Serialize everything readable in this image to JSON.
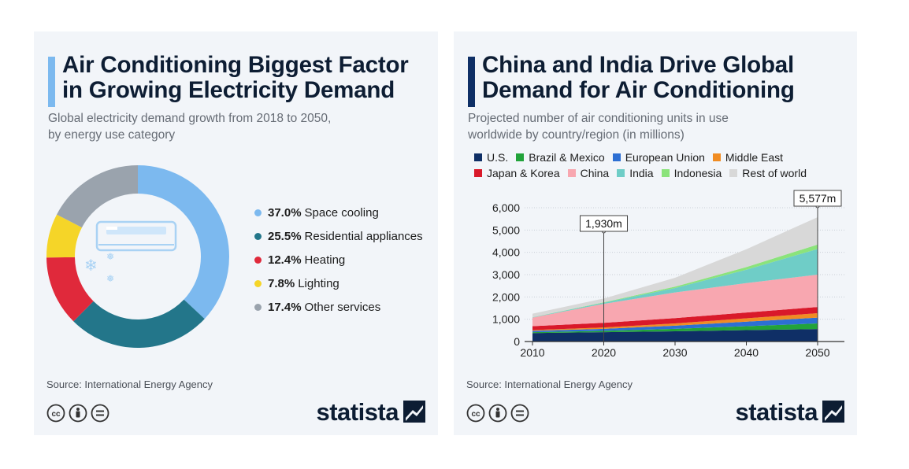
{
  "left": {
    "title_line1": "Air Conditioning Biggest Factor",
    "title_line2": "in Growing Electricity Demand",
    "subtitle_line1": "Global electricity demand growth from 2018 to 2050,",
    "subtitle_line2": "by energy use category",
    "source": "Source: International Energy Agency",
    "brand": "statista",
    "icons": [
      "cc-icon",
      "by-icon",
      "nd-icon",
      "statista-logo-icon",
      "air-conditioner-icon",
      "snowflake-icon"
    ]
  },
  "right": {
    "title_line1": "China and India Drive Global",
    "title_line2": "Demand for Air Conditioning",
    "subtitle_line1": "Projected number of air conditioning units in use",
    "subtitle_line2": "worldwide by country/region (in millions)",
    "source": "Source: International Energy Agency",
    "brand": "statista"
  },
  "chart_data": [
    {
      "type": "pie",
      "title": "Air Conditioning Biggest Factor in Growing Electricity Demand",
      "subtitle": "Global electricity demand growth from 2018 to 2050, by energy use category",
      "slices": [
        {
          "label": "Space cooling",
          "value": 37.0,
          "display": "37.0%",
          "color": "#7cb9ef"
        },
        {
          "label": "Residential appliances",
          "value": 25.5,
          "display": "25.5%",
          "color": "#23768a"
        },
        {
          "label": "Heating",
          "value": 12.4,
          "display": "12.4%",
          "color": "#e0293b"
        },
        {
          "label": "Lighting",
          "value": 7.8,
          "display": "7.8%",
          "color": "#f5d528"
        },
        {
          "label": "Other services",
          "value": 17.4,
          "display": "17.4%",
          "color": "#9aa3ad"
        }
      ],
      "legend": "right"
    },
    {
      "type": "area",
      "stacked": true,
      "title": "China and India Drive Global Demand for Air Conditioning",
      "subtitle": "Projected number of air conditioning units in use worldwide by country/region (in millions)",
      "x": [
        2010,
        2020,
        2030,
        2040,
        2050
      ],
      "xticks": [
        "2010",
        "2020",
        "2030",
        "2040",
        "2050"
      ],
      "yticks": [
        "0",
        "1,000",
        "2,000",
        "3,000",
        "4,000",
        "5,000",
        "6,000"
      ],
      "ylim": [
        0,
        6000
      ],
      "grid": true,
      "legend": "top",
      "series": [
        {
          "name": "U.S.",
          "color": "#0f2f66",
          "values": [
            380,
            420,
            460,
            510,
            560
          ]
        },
        {
          "name": "Brazil & Mexico",
          "color": "#22a33a",
          "values": [
            40,
            60,
            110,
            180,
            250
          ]
        },
        {
          "name": "European Union",
          "color": "#2d6fd3",
          "values": [
            60,
            90,
            140,
            200,
            260
          ]
        },
        {
          "name": "Middle East",
          "color": "#f08c23",
          "values": [
            30,
            60,
            100,
            150,
            200
          ]
        },
        {
          "name": "Japan & Korea",
          "color": "#d9192a",
          "values": [
            180,
            210,
            240,
            260,
            280
          ]
        },
        {
          "name": "China",
          "color": "#f8a7b0",
          "values": [
            380,
            850,
            1150,
            1320,
            1450
          ]
        },
        {
          "name": "India",
          "color": "#6fcdc7",
          "values": [
            15,
            50,
            200,
            600,
            1150
          ]
        },
        {
          "name": "Indonesia",
          "color": "#8be37b",
          "values": [
            5,
            20,
            60,
            120,
            200
          ]
        },
        {
          "name": "Rest of world",
          "color": "#d8d8d8",
          "values": [
            160,
            170,
            400,
            800,
            1227
          ]
        }
      ],
      "annotations": [
        {
          "x": 2020,
          "value": 1930,
          "label": "1,930m"
        },
        {
          "x": 2050,
          "value": 5577,
          "label": "5,577m"
        }
      ]
    }
  ]
}
